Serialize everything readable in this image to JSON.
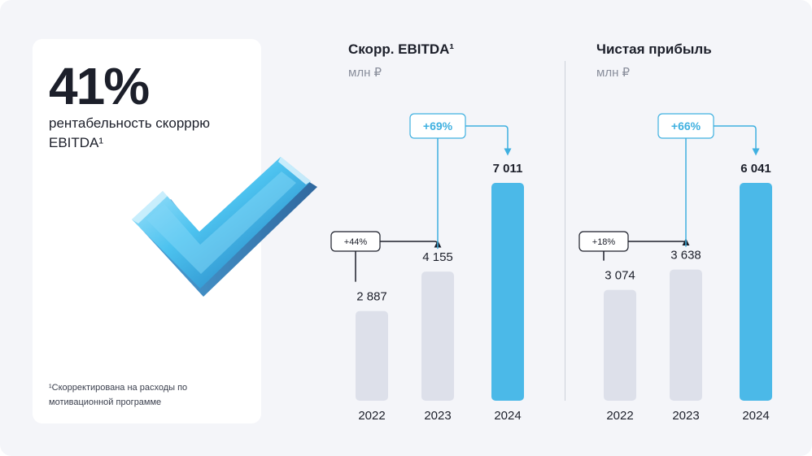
{
  "kpi": {
    "value": "41%",
    "label": "рентабельность скорррю EBITDA¹",
    "footnote": "¹Скорректирована на расходы по мотивационной программе"
  },
  "colors": {
    "bar_past": "#dde0ea",
    "bar_current": "#4bb9e8",
    "accent": "#3fb0e0",
    "text": "#1c1f2a"
  },
  "icons": [
    "check-mark-icon"
  ],
  "chart_data": [
    {
      "type": "bar",
      "title": "Скорр. EBITDA¹",
      "unit": "млн ₽",
      "categories": [
        "2022",
        "2023",
        "2024"
      ],
      "values": [
        2887,
        4155,
        7011
      ],
      "value_labels": [
        "2 887",
        "4 155",
        "7 011"
      ],
      "annotations": [
        {
          "label": "+44%",
          "from": "2022",
          "to": "2023"
        },
        {
          "label": "+69%",
          "from": "2023",
          "to": "2024"
        }
      ]
    },
    {
      "type": "bar",
      "title": "Чистая прибыль",
      "unit": "млн ₽",
      "categories": [
        "2022",
        "2023",
        "2024"
      ],
      "values": [
        3074,
        3638,
        6041
      ],
      "value_labels": [
        "3 074",
        "3 638",
        "6 041"
      ],
      "annotations": [
        {
          "label": "+18%",
          "from": "2022",
          "to": "2023"
        },
        {
          "label": "+66%",
          "from": "2023",
          "to": "2024"
        }
      ]
    }
  ]
}
